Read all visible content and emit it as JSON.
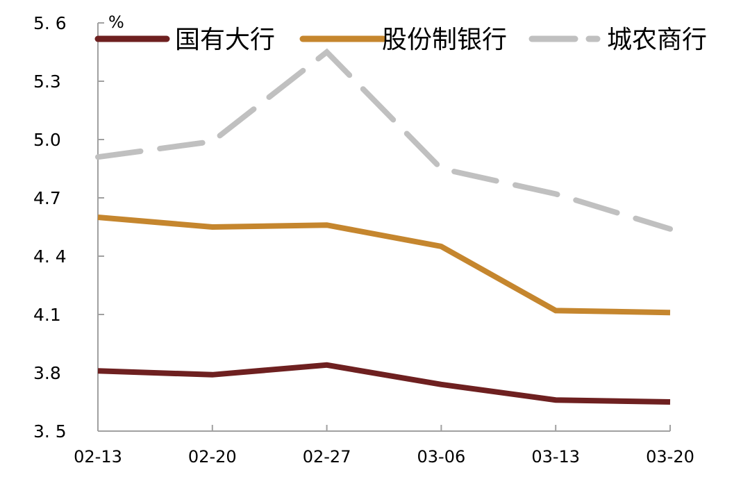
{
  "chart_data": {
    "type": "line",
    "title": "",
    "xlabel": "",
    "ylabel": "%",
    "unit_label": "%",
    "categories": [
      "02-13",
      "02-20",
      "02-27",
      "03-06",
      "03-13",
      "03-20"
    ],
    "ylim": [
      3.5,
      5.6
    ],
    "yticks": [
      3.5,
      3.8,
      4.1,
      4.4,
      4.7,
      5.0,
      5.3,
      5.6
    ],
    "ytick_labels": [
      "3. 5",
      "3.8",
      "4.1",
      "4. 4",
      "4.7",
      "5.0",
      "5.3",
      "5. 6"
    ],
    "grid": false,
    "legend_position": "top",
    "series": [
      {
        "name": "国有大行",
        "color": "#6e2020",
        "style": "solid",
        "values": [
          3.81,
          3.79,
          3.84,
          3.74,
          3.66,
          3.65
        ]
      },
      {
        "name": "股份制银行",
        "color": "#c5862e",
        "style": "solid",
        "values": [
          4.6,
          4.55,
          4.56,
          4.45,
          4.12,
          4.11
        ]
      },
      {
        "name": "城农商行",
        "color": "#c0c0c0",
        "style": "dashed",
        "values": [
          4.91,
          4.99,
          5.45,
          4.85,
          4.72,
          4.54
        ]
      }
    ]
  },
  "axis_color": "#a0a0a0"
}
